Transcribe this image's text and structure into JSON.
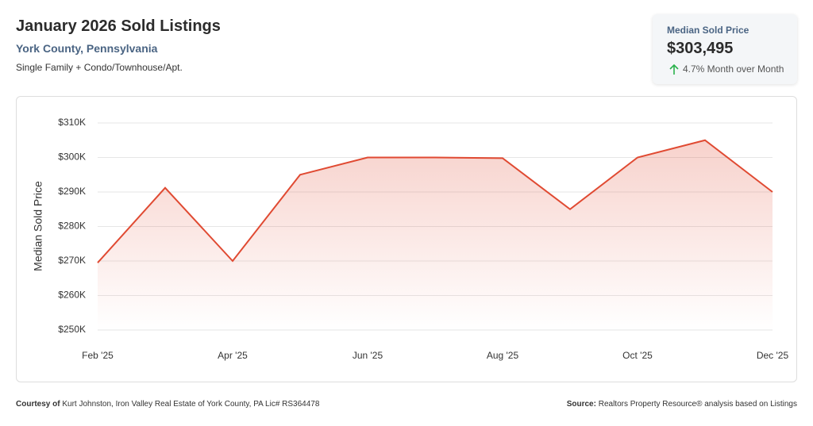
{
  "header": {
    "title": "January 2026 Sold Listings",
    "subtitle": "York County, Pennsylvania",
    "description": "Single Family + Condo/Townhouse/Apt."
  },
  "kpi": {
    "label": "Median Sold Price",
    "value": "$303,495",
    "change": "4.7% Month over Month"
  },
  "chart_data": {
    "type": "line",
    "y_label": "Median Sold Price",
    "categories": [
      "Feb '25",
      null,
      "Apr '25",
      null,
      "Jun '25",
      null,
      "Aug '25",
      null,
      "Oct '25",
      null,
      "Dec '25"
    ],
    "series": [
      {
        "name": "Median Sold Price",
        "color": "#e04a32",
        "values": [
          269500,
          291200,
          270000,
          295000,
          300000,
          300000,
          299800,
          285000,
          300000,
          305000,
          290000
        ]
      }
    ],
    "ylim": [
      250000,
      310000
    ],
    "yticks": [
      {
        "value": 250000,
        "label": "$250K"
      },
      {
        "value": 260000,
        "label": "$260K"
      },
      {
        "value": 270000,
        "label": "$270K"
      },
      {
        "value": 280000,
        "label": "$280K"
      },
      {
        "value": 290000,
        "label": "$290K"
      },
      {
        "value": 300000,
        "label": "$300K"
      },
      {
        "value": 310000,
        "label": "$310K"
      }
    ],
    "grid": true
  },
  "footer": {
    "courtesy_label": "Courtesy of",
    "courtesy": "Kurt Johnston, Iron Valley Real Estate of York County, PA Lic# RS364478",
    "source_label": "Source:",
    "source": "Realtors Property Resource® analysis based on Listings"
  }
}
